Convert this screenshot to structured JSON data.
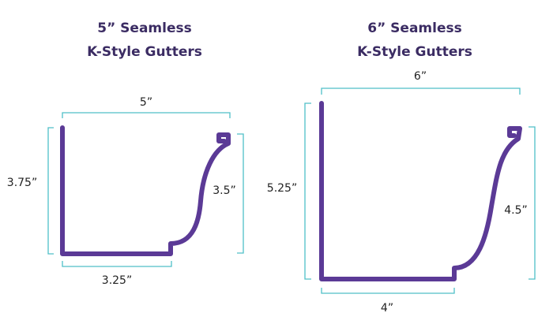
{
  "colors": {
    "gutter_stroke": "#5b3a96",
    "dimension_line": "#4fbfc8",
    "title_text": "#3b2c63",
    "label_text": "#222222"
  },
  "gutters": [
    {
      "title_line1": "5” Seamless",
      "title_line2": "K-Style Gutters",
      "width_label": "5”",
      "back_height_label": "3.75”",
      "front_height_label": "3.5”",
      "bottom_label": "3.25”"
    },
    {
      "title_line1": "6” Seamless",
      "title_line2": "K-Style Gutters",
      "width_label": "6”",
      "back_height_label": "5.25”",
      "front_height_label": "4.5”",
      "bottom_label": "4”"
    }
  ]
}
